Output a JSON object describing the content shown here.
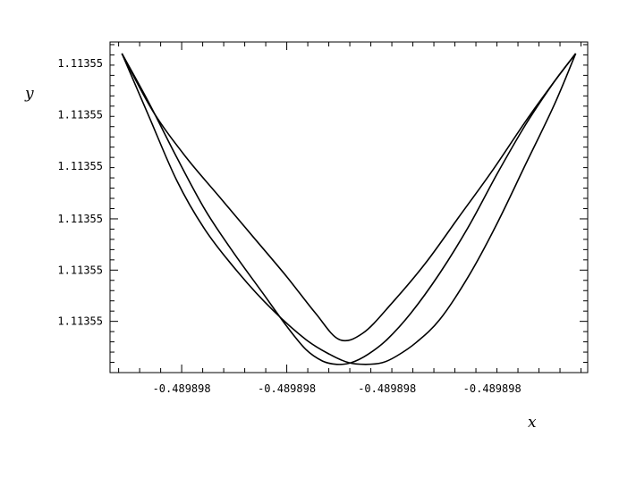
{
  "chart_data": {
    "type": "line",
    "title": "",
    "xlabel": "x",
    "ylabel": "y",
    "xlim": [
      0,
      1
    ],
    "ylim": [
      0,
      1
    ],
    "grid": false,
    "legend": "none",
    "x_ticks": [
      {
        "value": 0.15,
        "label": "-0.489898"
      },
      {
        "value": 0.37,
        "label": "-0.489898"
      },
      {
        "value": 0.58,
        "label": "-0.489898"
      },
      {
        "value": 0.8,
        "label": "-0.489898"
      }
    ],
    "y_ticks": [
      {
        "value": 0.155,
        "label": "1.11355"
      },
      {
        "value": 0.31,
        "label": "1.11355"
      },
      {
        "value": 0.465,
        "label": "1.11355"
      },
      {
        "value": 0.625,
        "label": "1.11355"
      },
      {
        "value": 0.78,
        "label": "1.11355"
      },
      {
        "value": 0.935,
        "label": "1.11355"
      }
    ],
    "series": [
      {
        "x": [
          0.025,
          0.08,
          0.14,
          0.2,
          0.26,
          0.32,
          0.37,
          0.41,
          0.445,
          0.475,
          0.505,
          0.54,
          0.58,
          0.63,
          0.69,
          0.75,
          0.81,
          0.87,
          0.93,
          0.975
        ],
        "y": [
          0.965,
          0.82,
          0.65,
          0.49,
          0.36,
          0.24,
          0.14,
          0.07,
          0.035,
          0.025,
          0.03,
          0.055,
          0.1,
          0.18,
          0.3,
          0.44,
          0.6,
          0.75,
          0.88,
          0.965
        ]
      },
      {
        "x": [
          0.025,
          0.08,
          0.14,
          0.2,
          0.27,
          0.34,
          0.41,
          0.46,
          0.5,
          0.535,
          0.57,
          0.6,
          0.64,
          0.69,
          0.75,
          0.81,
          0.87,
          0.93,
          0.975
        ],
        "y": [
          0.965,
          0.78,
          0.58,
          0.43,
          0.3,
          0.19,
          0.1,
          0.055,
          0.03,
          0.025,
          0.03,
          0.05,
          0.09,
          0.16,
          0.29,
          0.45,
          0.63,
          0.81,
          0.965
        ]
      },
      {
        "x": [
          0.025,
          0.09,
          0.16,
          0.23,
          0.3,
          0.37,
          0.43,
          0.48,
          0.53,
          0.59,
          0.66,
          0.73,
          0.8,
          0.87,
          0.93,
          0.975
        ],
        "y": [
          0.965,
          0.79,
          0.65,
          0.53,
          0.41,
          0.29,
          0.18,
          0.1,
          0.12,
          0.21,
          0.33,
          0.47,
          0.61,
          0.76,
          0.88,
          0.965
        ]
      }
    ]
  }
}
